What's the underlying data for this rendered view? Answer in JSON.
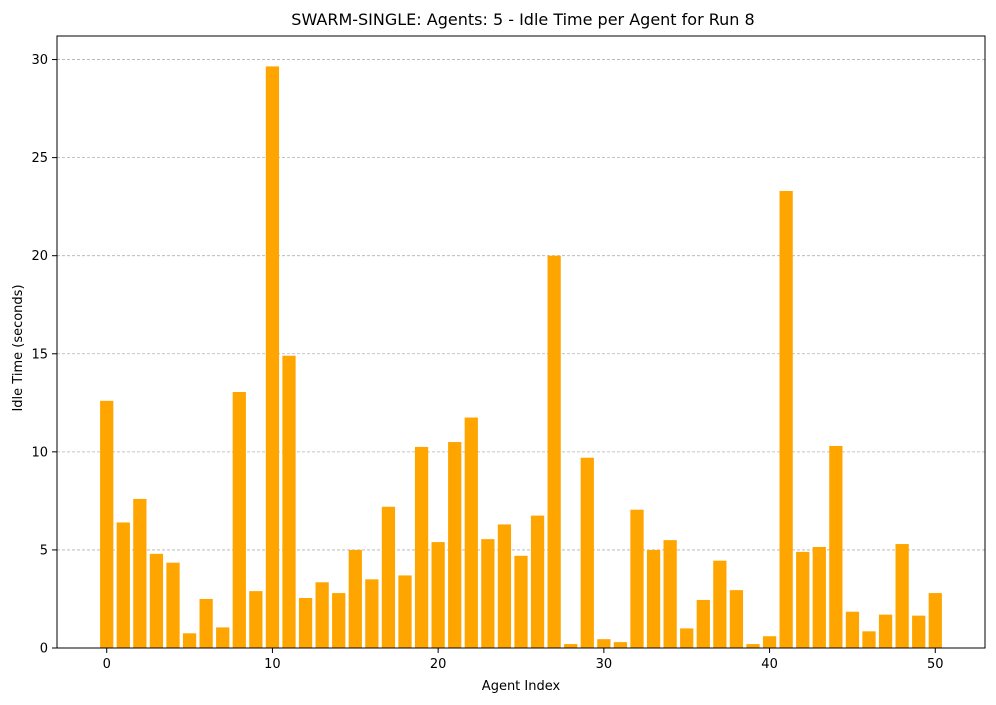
{
  "chart_data": {
    "type": "bar",
    "title": "SWARM-SINGLE: Agents: 5 - Idle Time per Agent for Run 8",
    "xlabel": "Agent Index",
    "ylabel": "Idle Time (seconds)",
    "xlim": [
      -3,
      53
    ],
    "ylim": [
      0,
      31.2
    ],
    "xticks": [
      0,
      10,
      20,
      30,
      40,
      50
    ],
    "yticks": [
      0,
      5,
      10,
      15,
      20,
      25,
      30
    ],
    "grid": "y-dashed",
    "bar_color": "#ffa500",
    "x": [
      0,
      1,
      2,
      3,
      4,
      5,
      6,
      7,
      8,
      9,
      10,
      11,
      12,
      13,
      14,
      15,
      16,
      17,
      18,
      19,
      20,
      21,
      22,
      23,
      24,
      25,
      26,
      27,
      28,
      29,
      30,
      31,
      32,
      33,
      34,
      35,
      36,
      37,
      38,
      39,
      40,
      41,
      42,
      43,
      44,
      45,
      46,
      47,
      48,
      49,
      50
    ],
    "values": [
      12.6,
      6.4,
      7.6,
      4.8,
      4.35,
      0.75,
      2.5,
      1.05,
      13.05,
      2.9,
      29.65,
      14.9,
      2.55,
      3.35,
      2.8,
      5.0,
      3.5,
      7.2,
      3.7,
      10.25,
      5.4,
      10.5,
      11.75,
      5.55,
      6.3,
      4.7,
      6.75,
      20.0,
      0.2,
      9.7,
      0.45,
      0.3,
      7.05,
      5.0,
      5.5,
      1.0,
      2.45,
      4.45,
      2.95,
      0.2,
      0.6,
      23.3,
      4.9,
      5.15,
      10.3,
      1.85,
      0.85,
      1.7,
      5.3,
      1.65,
      2.8
    ]
  }
}
